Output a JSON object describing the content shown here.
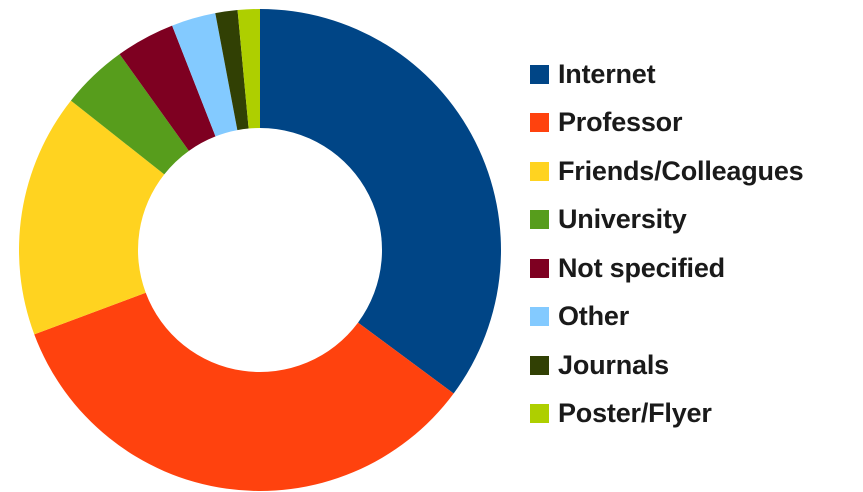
{
  "chart_data": {
    "type": "pie",
    "donut": true,
    "categories": [
      "Internet",
      "Professor",
      "Friends/Colleagues",
      "University",
      "Not specified",
      "Other",
      "Journals",
      "Poster/Flyer"
    ],
    "values": [
      35.5,
      34.5,
      16.5,
      4.5,
      4.0,
      3.0,
      1.5,
      1.5
    ],
    "colors": [
      "#004586",
      "#ff420e",
      "#ffd320",
      "#579d1c",
      "#7e0021",
      "#83caff",
      "#314004",
      "#aecf00"
    ],
    "legend_position": "right",
    "start_angle": "top, clockwise"
  }
}
